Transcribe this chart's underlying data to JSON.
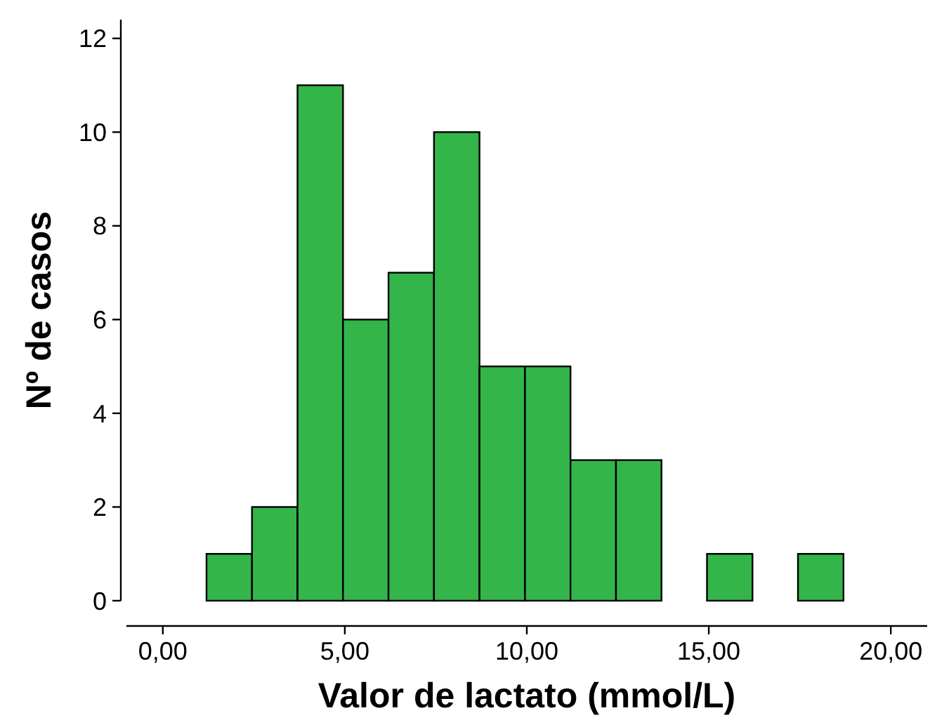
{
  "chart_data": {
    "type": "histogram",
    "xlabel": "Valor de lactato (mmol/L)",
    "ylabel": "Nº de casos",
    "bins": [
      1.2,
      2.45,
      3.7,
      4.95,
      6.2,
      7.45,
      8.7,
      9.95,
      11.2,
      12.45,
      13.7,
      14.95,
      16.2,
      17.45,
      18.7
    ],
    "values": [
      1,
      2,
      11,
      6,
      7,
      10,
      5,
      5,
      3,
      3,
      0,
      1,
      0,
      1
    ],
    "color": "#33b54a",
    "xlim": [
      -1,
      21
    ],
    "xticks": [
      {
        "value": 0,
        "label": "0,00"
      },
      {
        "value": 5,
        "label": "5,00"
      },
      {
        "value": 10,
        "label": "10,00"
      },
      {
        "value": 15,
        "label": "15,00"
      },
      {
        "value": 20,
        "label": "20,00"
      }
    ],
    "ylim": [
      0,
      12.4
    ],
    "yticks": [
      0,
      2,
      4,
      6,
      8,
      10,
      12
    ],
    "grid": false
  }
}
